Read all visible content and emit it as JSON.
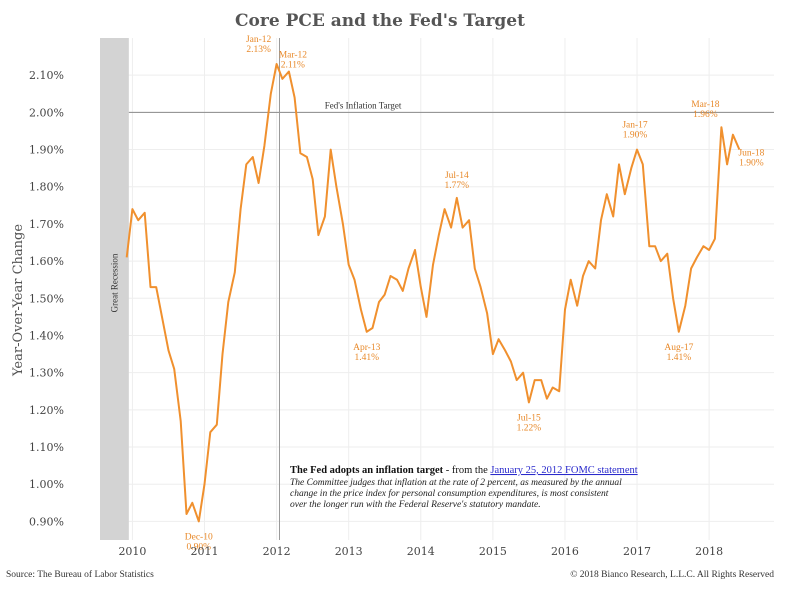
{
  "chart_data": {
    "type": "line",
    "title": "Core PCE and the Fed's Target",
    "ylabel": "Year-Over-Year Change",
    "xlabel": "",
    "ylim": [
      0.85,
      2.2
    ],
    "xlim": [
      2009.55,
      2018.9
    ],
    "grid": true,
    "y_ticks": [
      {
        "v": 0.9,
        "label": "0.90%"
      },
      {
        "v": 1.0,
        "label": "1.00%"
      },
      {
        "v": 1.1,
        "label": "1.10%"
      },
      {
        "v": 1.2,
        "label": "1.20%"
      },
      {
        "v": 1.3,
        "label": "1.30%"
      },
      {
        "v": 1.4,
        "label": "1.40%"
      },
      {
        "v": 1.5,
        "label": "1.50%"
      },
      {
        "v": 1.6,
        "label": "1.60%"
      },
      {
        "v": 1.7,
        "label": "1.70%"
      },
      {
        "v": 1.8,
        "label": "1.80%"
      },
      {
        "v": 1.9,
        "label": "1.90%"
      },
      {
        "v": 2.0,
        "label": "2.00%"
      },
      {
        "v": 2.1,
        "label": "2.10%"
      }
    ],
    "x_ticks": [
      {
        "v": 2010,
        "label": "2010"
      },
      {
        "v": 2011,
        "label": "2011"
      },
      {
        "v": 2012,
        "label": "2012"
      },
      {
        "v": 2013,
        "label": "2013"
      },
      {
        "v": 2014,
        "label": "2014"
      },
      {
        "v": 2015,
        "label": "2015"
      },
      {
        "v": 2016,
        "label": "2016"
      },
      {
        "v": 2017,
        "label": "2017"
      },
      {
        "v": 2018,
        "label": "2018"
      }
    ],
    "line_color": "#f0902e",
    "series": [
      {
        "x": [
          2009.92,
          2010.0,
          2010.08,
          2010.17,
          2010.25,
          2010.33,
          2010.42,
          2010.5,
          2010.58,
          2010.67,
          2010.75,
          2010.83,
          2010.92,
          2011.0,
          2011.08,
          2011.17,
          2011.25,
          2011.33,
          2011.42,
          2011.5,
          2011.58,
          2011.67,
          2011.75,
          2011.83,
          2011.92,
          2012.0,
          2012.08,
          2012.17,
          2012.25,
          2012.33,
          2012.42,
          2012.5,
          2012.58,
          2012.67,
          2012.75,
          2012.83,
          2012.92,
          2013.0,
          2013.08,
          2013.17,
          2013.25,
          2013.33,
          2013.42,
          2013.5,
          2013.58,
          2013.67,
          2013.75,
          2013.83,
          2013.92,
          2014.0,
          2014.08,
          2014.17,
          2014.25,
          2014.33,
          2014.42,
          2014.5,
          2014.58,
          2014.67,
          2014.75,
          2014.83,
          2014.92,
          2015.0,
          2015.08,
          2015.17,
          2015.25,
          2015.33,
          2015.42,
          2015.5,
          2015.58,
          2015.67,
          2015.75,
          2015.83,
          2015.92,
          2016.0,
          2016.08,
          2016.17,
          2016.25,
          2016.33,
          2016.42,
          2016.5,
          2016.58,
          2016.67,
          2016.75,
          2016.83,
          2016.92,
          2017.0,
          2017.08,
          2017.17,
          2017.25,
          2017.33,
          2017.42,
          2017.5,
          2017.58,
          2017.67,
          2017.75,
          2017.83,
          2017.92,
          2018.0,
          2018.08,
          2018.17,
          2018.25,
          2018.33,
          2018.42
        ],
        "y": [
          1.61,
          1.74,
          1.71,
          1.73,
          1.53,
          1.53,
          1.44,
          1.36,
          1.31,
          1.17,
          0.92,
          0.95,
          0.9,
          1.0,
          1.14,
          1.16,
          1.35,
          1.49,
          1.57,
          1.74,
          1.86,
          1.88,
          1.81,
          1.91,
          2.05,
          2.13,
          2.09,
          2.11,
          2.04,
          1.89,
          1.88,
          1.82,
          1.67,
          1.72,
          1.9,
          1.8,
          1.7,
          1.59,
          1.55,
          1.47,
          1.41,
          1.42,
          1.49,
          1.51,
          1.56,
          1.55,
          1.52,
          1.58,
          1.63,
          1.53,
          1.45,
          1.59,
          1.67,
          1.74,
          1.69,
          1.77,
          1.69,
          1.71,
          1.58,
          1.53,
          1.46,
          1.35,
          1.39,
          1.36,
          1.33,
          1.28,
          1.3,
          1.22,
          1.28,
          1.28,
          1.23,
          1.26,
          1.25,
          1.47,
          1.55,
          1.48,
          1.56,
          1.6,
          1.58,
          1.71,
          1.78,
          1.72,
          1.86,
          1.78,
          1.85,
          1.9,
          1.86,
          1.64,
          1.64,
          1.6,
          1.62,
          1.5,
          1.41,
          1.48,
          1.58,
          1.61,
          1.64,
          1.63,
          1.66,
          1.96,
          1.86,
          1.94,
          1.9
        ]
      }
    ],
    "annotations": [
      {
        "label": "Dec-10",
        "value": "0.90%",
        "x": 2010.92,
        "y": 0.9
      },
      {
        "label": "Jan-12",
        "value": "2.13%",
        "x": 2012.0,
        "y": 2.13
      },
      {
        "label": "Mar-12",
        "value": "2.11%",
        "x": 2012.17,
        "y": 2.11
      },
      {
        "label": "Apr-13",
        "value": "1.41%",
        "x": 2013.25,
        "y": 1.41
      },
      {
        "label": "Jul-14",
        "value": "1.77%",
        "x": 2014.5,
        "y": 1.77
      },
      {
        "label": "Jul-15",
        "value": "1.22%",
        "x": 2015.5,
        "y": 1.22
      },
      {
        "label": "Jan-17",
        "value": "1.90%",
        "x": 2017.0,
        "y": 1.9
      },
      {
        "label": "Aug-17",
        "value": "1.41%",
        "x": 2017.58,
        "y": 1.41
      },
      {
        "label": "Mar-18",
        "value": "1.96%",
        "x": 2018.17,
        "y": 1.96
      },
      {
        "label": "Jun-18",
        "value": "1.90%",
        "x": 2018.42,
        "y": 1.9
      }
    ],
    "target": {
      "y": 2.0,
      "label": "Fed's Inflation Target"
    },
    "recession": {
      "x_start": 2009.55,
      "x_end": 2009.95,
      "label": "Great Recession",
      "color": "#d3d3d3"
    },
    "event_line": {
      "x": 2012.04,
      "color": "#9a9a9a"
    },
    "note": {
      "head_bold": "The Fed adopts an inflation target",
      "head_plain": " - from the ",
      "link": "January 25, 2012 FOMC statement",
      "lines": [
        "The Committee judges that inflation at the rate of 2 percent, as measured by the annual",
        "change in the price index for personal consumption expenditures, is most consistent",
        "over the longer run with the Federal Reserve's statutory mandate."
      ]
    },
    "source": "Source: The Bureau of Labor Statistics",
    "copyright": "© 2018 Bianco Research, L.L.C. All Rights Reserved"
  }
}
